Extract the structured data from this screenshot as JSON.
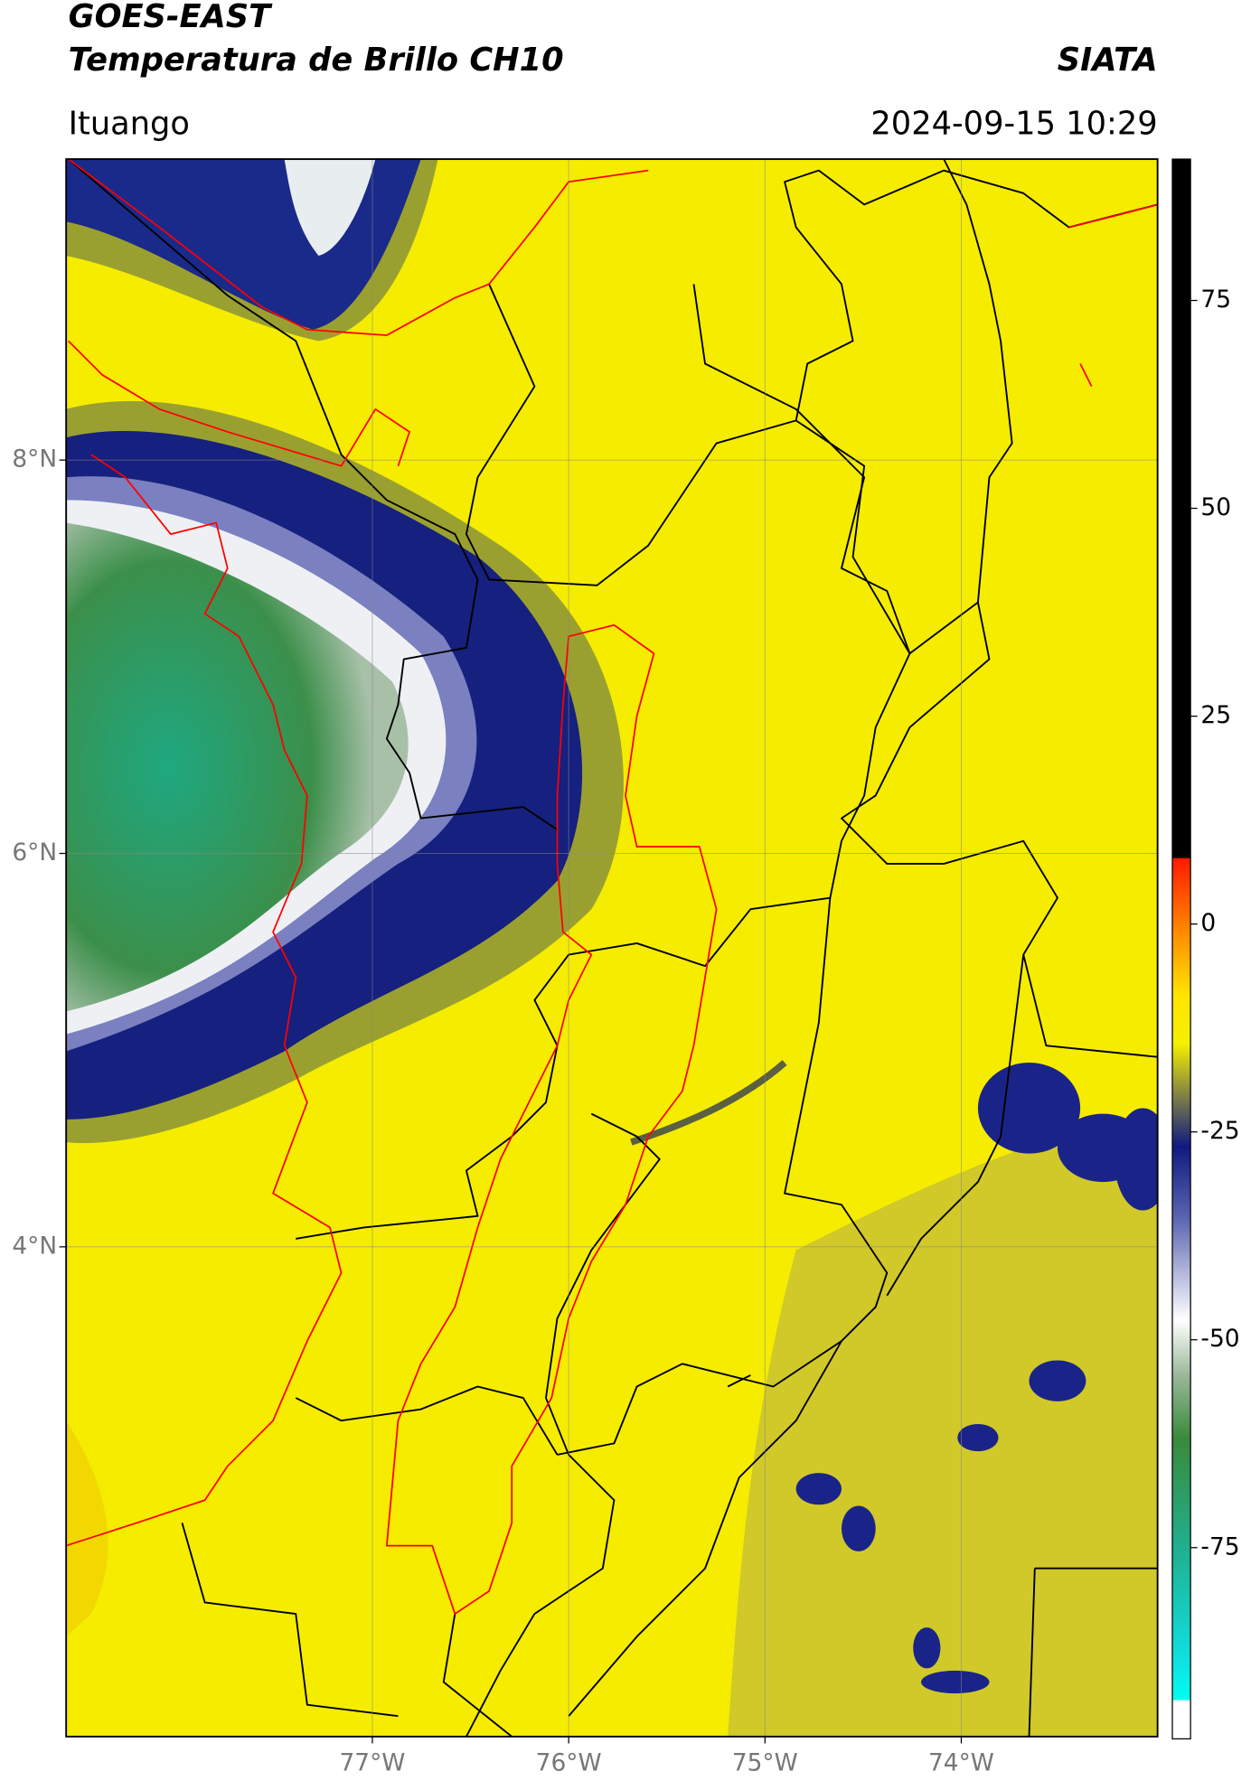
{
  "header": {
    "title": "GOES-EAST",
    "subtitle": "Temperatura de Brillo CH10",
    "brand": "SIATA",
    "location": "Ituango",
    "datetime": "2024-09-15 10:29"
  },
  "map": {
    "xlim": [
      -78.56,
      -73.0
    ],
    "ylim": [
      1.51,
      9.53
    ],
    "xticks": [
      {
        "value": -77,
        "label": "77°W"
      },
      {
        "value": -76,
        "label": "76°W"
      },
      {
        "value": -75,
        "label": "75°W"
      },
      {
        "value": -74,
        "label": "74°W"
      }
    ],
    "yticks": [
      {
        "value": 8,
        "label": "8°N"
      },
      {
        "value": 6,
        "label": "6°N"
      },
      {
        "value": 4,
        "label": "4°N"
      }
    ],
    "grid": true
  },
  "colorbar": {
    "ylim": [
      -98,
      92
    ],
    "ticks": [
      75,
      50,
      25,
      0,
      -25,
      -50,
      -75
    ]
  }
}
